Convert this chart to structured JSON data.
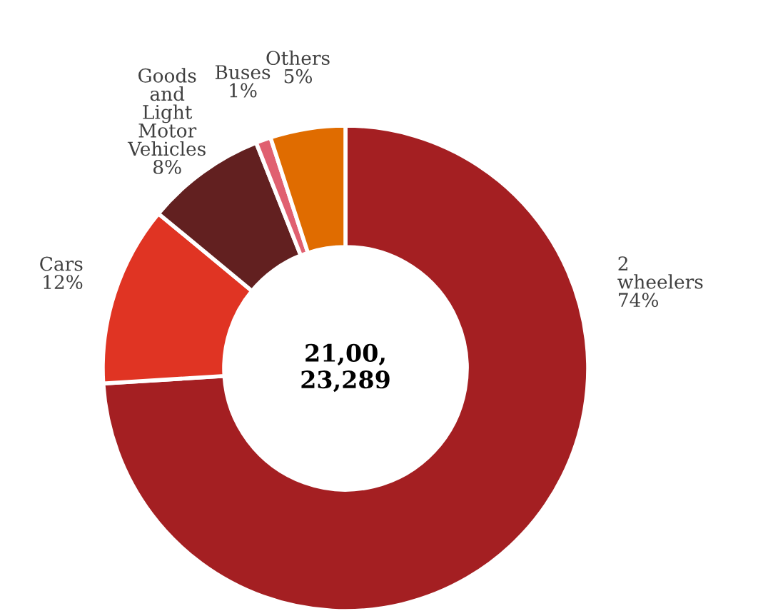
{
  "chart_data": {
    "type": "donut",
    "categories": [
      "2\nwheelers",
      "Cars",
      "Goods\nand\nLight\nMotor\nVehicles",
      "Buses",
      "Others"
    ],
    "values": [
      74,
      12,
      8,
      1,
      5
    ],
    "value_labels": [
      "74%",
      "12%",
      "8%",
      "1%",
      "5%"
    ],
    "colors": [
      "#a41f22",
      "#e03423",
      "#622020",
      "#e06070",
      "#e06c00"
    ],
    "annotations": [
      "21,00,\n23,289"
    ],
    "legend": false
  }
}
